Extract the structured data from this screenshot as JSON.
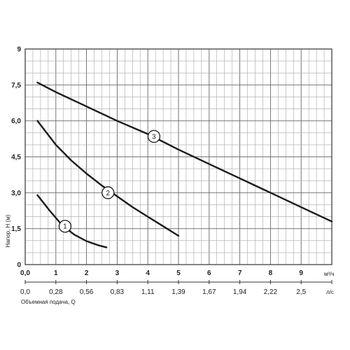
{
  "chart_data": {
    "type": "line",
    "xlabel_primary_unit": "м³/ч",
    "xlabel_secondary_unit": "л/с",
    "xlabel_secondary": "Объемная подача, Q",
    "ylabel": "Напор, H (м)",
    "xlim": [
      0,
      10
    ],
    "ylim": [
      0,
      9
    ],
    "x_ticks": [
      "0,0",
      "1",
      "2",
      "3",
      "4",
      "5",
      "6",
      "7",
      "8",
      "9"
    ],
    "x_ticks_secondary": [
      "0,0",
      "0,28",
      "0,56",
      "0,83",
      "1,11",
      "1,39",
      "1,67",
      "1,94",
      "2,22",
      "2,5"
    ],
    "y_ticks": [
      "0",
      "1,5",
      "3,0",
      "4,5",
      "6,0",
      "7,5",
      "9"
    ],
    "grid": true,
    "series": [
      {
        "name": "1",
        "x": [
          0.4,
          0.8,
          1.2,
          1.6,
          2.0,
          2.4,
          2.65
        ],
        "y": [
          2.9,
          2.25,
          1.65,
          1.25,
          0.98,
          0.8,
          0.72
        ],
        "label_at": [
          1.3,
          1.6
        ]
      },
      {
        "name": "2",
        "x": [
          0.4,
          1.0,
          1.5,
          2.0,
          2.5,
          3.0,
          3.5,
          4.0,
          4.5,
          5.0
        ],
        "y": [
          6.0,
          5.0,
          4.35,
          3.8,
          3.3,
          2.85,
          2.4,
          2.0,
          1.6,
          1.2
        ],
        "label_at": [
          2.7,
          3.0
        ]
      },
      {
        "name": "3",
        "x": [
          0.4,
          1,
          2,
          3,
          4,
          5,
          6,
          7,
          8,
          9,
          10
        ],
        "y": [
          7.6,
          7.2,
          6.6,
          6.0,
          5.45,
          4.8,
          4.2,
          3.6,
          3.0,
          2.4,
          1.8
        ],
        "label_at": [
          4.2,
          5.35
        ]
      }
    ]
  }
}
